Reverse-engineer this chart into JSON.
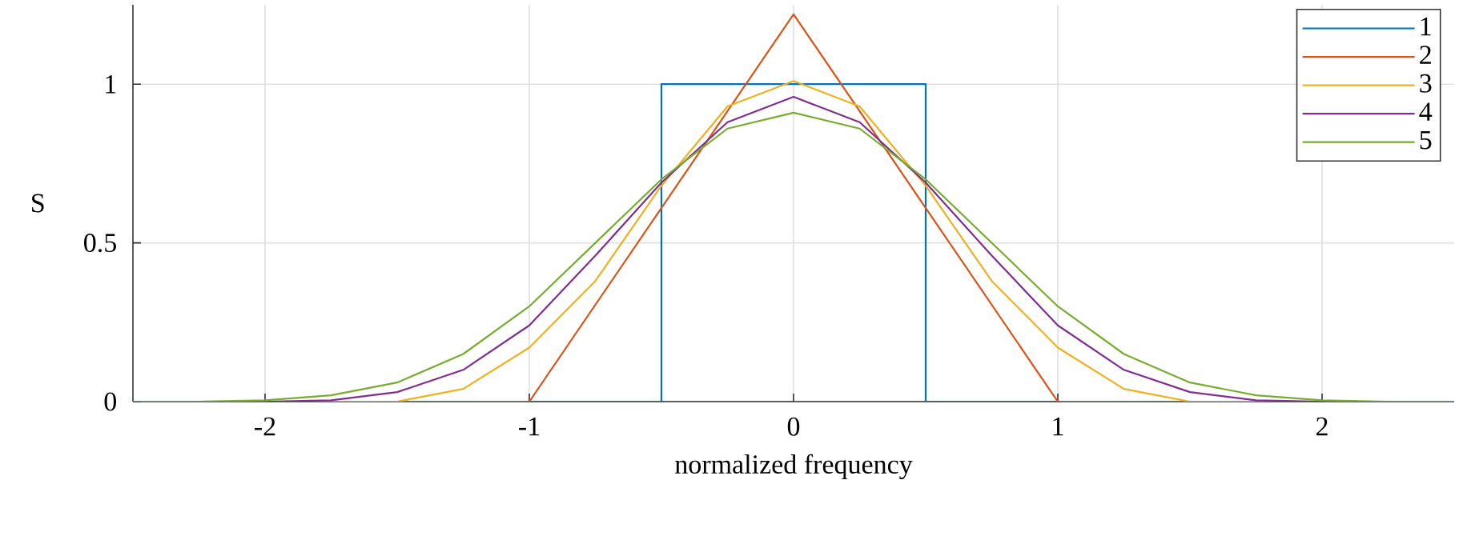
{
  "chart_data": {
    "type": "line",
    "xlabel": "normalized frequency",
    "ylabel": "S",
    "xlim": [
      -2.5,
      2.5
    ],
    "ylim": [
      0,
      1.25
    ],
    "xticks": [
      -2,
      -1,
      0,
      1,
      2
    ],
    "yticks": [
      0,
      0.5,
      1
    ],
    "grid": true,
    "legend": "top right",
    "series": [
      {
        "name": "1",
        "color": "#0072bd",
        "x": [
          -2.5,
          -0.5,
          -0.5,
          0.5,
          0.5,
          2.5
        ],
        "values": [
          0,
          0,
          1,
          1,
          0,
          0
        ]
      },
      {
        "name": "2",
        "color": "#d95319",
        "x": [
          -2.5,
          -1,
          0,
          1,
          2.5
        ],
        "values": [
          0,
          0,
          1.22,
          0,
          0
        ]
      },
      {
        "name": "3",
        "color": "#edb120",
        "x": [
          -2.5,
          -1.5,
          -1.25,
          -1,
          -0.75,
          -0.5,
          -0.25,
          0,
          0.25,
          0.5,
          0.75,
          1,
          1.25,
          1.5,
          2.5
        ],
        "values": [
          0,
          0,
          0.04,
          0.17,
          0.38,
          0.68,
          0.93,
          1.01,
          0.93,
          0.68,
          0.38,
          0.17,
          0.04,
          0,
          0
        ]
      },
      {
        "name": "4",
        "color": "#7e2f8e",
        "x": [
          -2.5,
          -2,
          -1.75,
          -1.5,
          -1.25,
          -1,
          -0.75,
          -0.5,
          -0.25,
          0,
          0.25,
          0.5,
          0.75,
          1,
          1.25,
          1.5,
          1.75,
          2,
          2.5
        ],
        "values": [
          0,
          0,
          0.004,
          0.03,
          0.1,
          0.24,
          0.46,
          0.69,
          0.88,
          0.96,
          0.88,
          0.69,
          0.46,
          0.24,
          0.1,
          0.03,
          0.004,
          0,
          0
        ]
      },
      {
        "name": "5",
        "color": "#77ac30",
        "x": [
          -2.5,
          -2.25,
          -2,
          -1.75,
          -1.5,
          -1.25,
          -1,
          -0.75,
          -0.5,
          -0.25,
          0,
          0.25,
          0.5,
          0.75,
          1,
          1.25,
          1.5,
          1.75,
          2,
          2.25,
          2.5
        ],
        "values": [
          0,
          0,
          0.004,
          0.02,
          0.06,
          0.15,
          0.3,
          0.5,
          0.7,
          0.86,
          0.91,
          0.86,
          0.7,
          0.5,
          0.3,
          0.15,
          0.06,
          0.02,
          0.004,
          0,
          0
        ]
      }
    ]
  }
}
